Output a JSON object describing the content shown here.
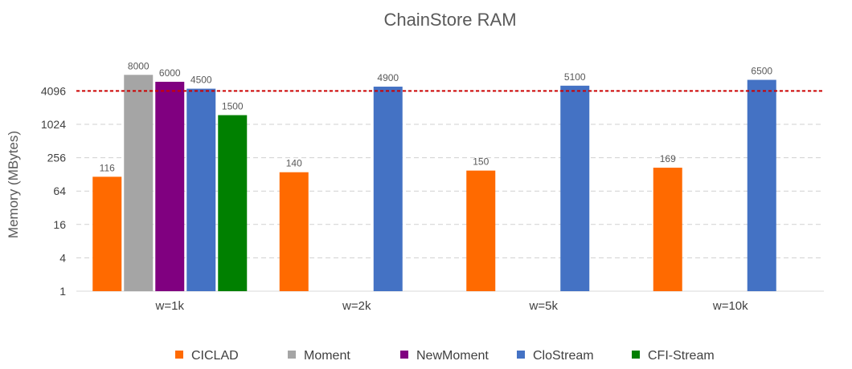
{
  "chart_data": {
    "type": "bar",
    "title": "ChainStore RAM",
    "ylabel": "Memory (MBytes)",
    "xlabel": "",
    "yscale": "log2",
    "ylim": [
      1,
      11000
    ],
    "yticks": [
      1,
      4,
      16,
      64,
      256,
      1024,
      4096
    ],
    "ytick_labels": [
      "1",
      "4",
      "16",
      "64",
      "256",
      "1024",
      "4096"
    ],
    "grid": "horizontal dashed",
    "legend_position": "bottom",
    "reference_line": {
      "value": 4096,
      "color": "#cc0000",
      "style": "dashed"
    },
    "categories": [
      "w=1k",
      "w=2k",
      "w=5k",
      "w=10k"
    ],
    "series": [
      {
        "name": "CICLAD",
        "color": "#ff6a00",
        "values": [
          116,
          140,
          150,
          169
        ]
      },
      {
        "name": "Moment",
        "color": "#a5a5a5",
        "values": [
          8000,
          null,
          null,
          null
        ]
      },
      {
        "name": "NewMoment",
        "color": "#800080",
        "values": [
          6000,
          null,
          null,
          null
        ]
      },
      {
        "name": "CloStream",
        "color": "#4472c4",
        "values": [
          4500,
          4900,
          5100,
          6500
        ]
      },
      {
        "name": "CFI-Stream",
        "color": "#008000",
        "values": [
          1500,
          null,
          null,
          null
        ]
      }
    ]
  }
}
